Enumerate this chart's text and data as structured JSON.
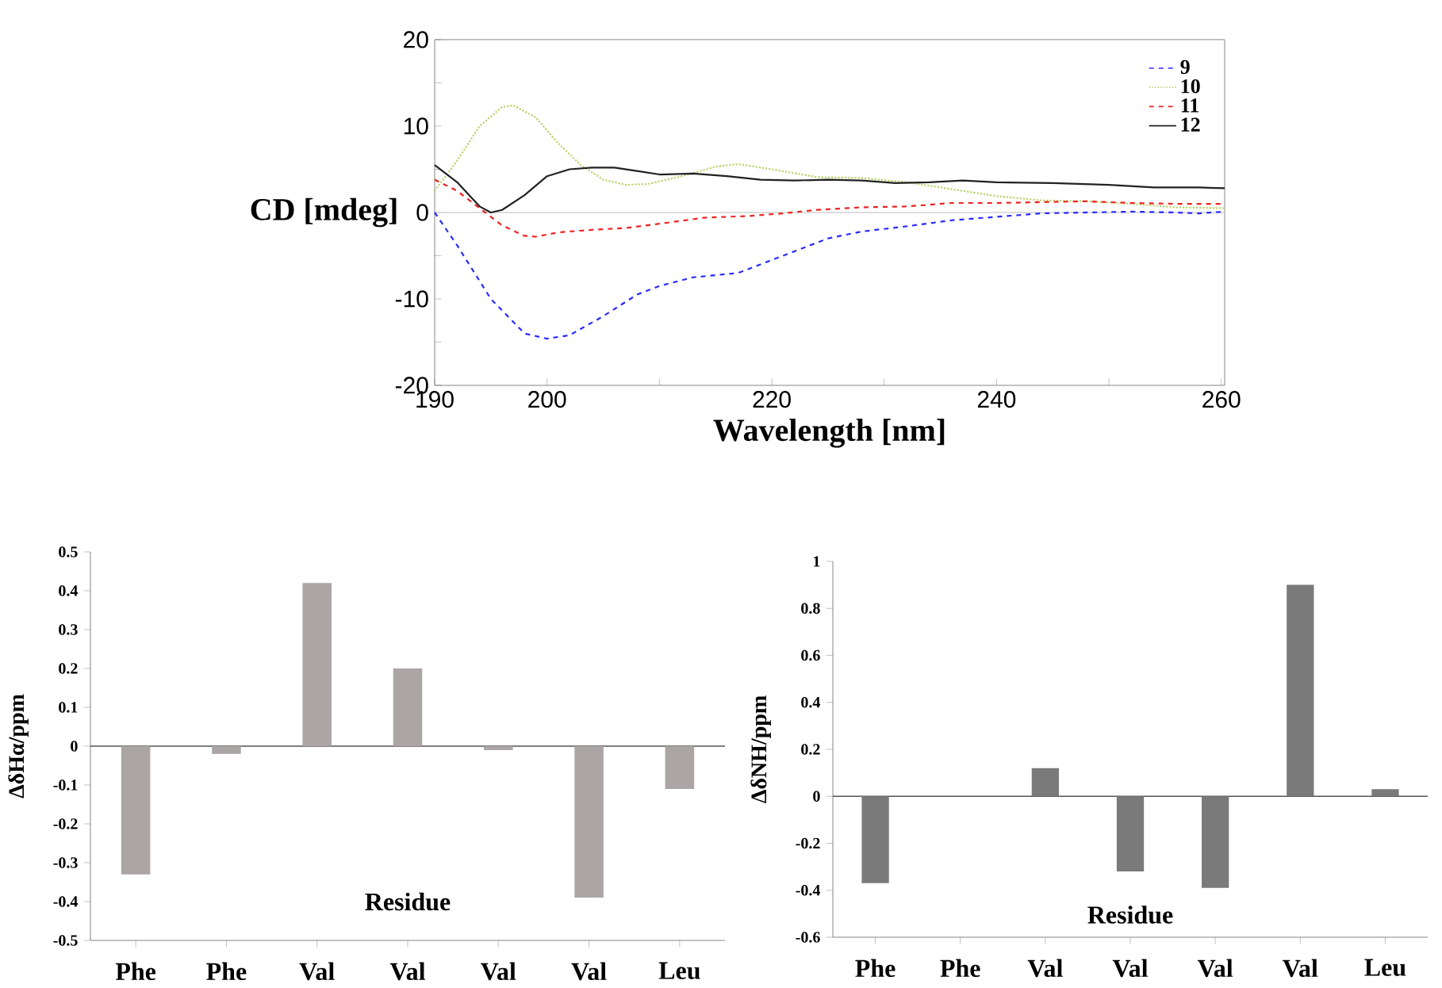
{
  "chart_data": [
    {
      "type": "line",
      "xlabel": "Wavelength [nm]",
      "ylabel": "CD [mdeg]",
      "xlim": [
        190,
        260.3
      ],
      "ylim": [
        -20,
        20
      ],
      "xticks": [
        190,
        200,
        {
          "value": 210,
          "label": null
        },
        220,
        {
          "value": 230,
          "label": null
        },
        240,
        {
          "value": 250,
          "label": null
        },
        260
      ],
      "yticks": [
        -20,
        {
          "value": -15,
          "label": null
        },
        -10,
        {
          "value": -5,
          "label": null
        },
        0,
        {
          "value": 5,
          "label": null
        },
        10,
        {
          "value": 15,
          "label": null
        },
        20
      ],
      "legend": "top right",
      "ref_lines": [
        {
          "axis": "y",
          "value": 0,
          "color": "#d0d0d0"
        }
      ],
      "series": [
        {
          "name": "9",
          "color": "#2a2aff",
          "line_style": "dashed",
          "x": [
            190,
            192,
            195,
            198,
            200,
            202,
            205,
            208,
            210,
            213,
            217,
            220,
            225,
            228,
            232,
            236,
            240,
            244,
            248,
            252,
            256,
            258,
            260.3
          ],
          "values": [
            0,
            -3.8,
            -10,
            -14,
            -14.6,
            -14.2,
            -12,
            -9.5,
            -8.5,
            -7.5,
            -7,
            -5.5,
            -3,
            -2.2,
            -1.6,
            -0.9,
            -0.5,
            -0.1,
            0,
            0.1,
            0,
            -0.1,
            0.1
          ]
        },
        {
          "name": "10",
          "color": "#b5d56a",
          "line_style": "dotted",
          "x": [
            190,
            192,
            194,
            196,
            197,
            199,
            201,
            203,
            205,
            207,
            209,
            212,
            215,
            217,
            220,
            224,
            228,
            232,
            236,
            240,
            244,
            248,
            252,
            256,
            260.3
          ],
          "values": [
            2.5,
            6,
            10,
            12.2,
            12.4,
            11,
            8,
            5.5,
            3.8,
            3.2,
            3.3,
            4.2,
            5.3,
            5.6,
            5,
            4.1,
            4,
            3.5,
            2.7,
            1.9,
            1.4,
            1.3,
            1,
            0.6,
            0.5
          ]
        },
        {
          "name": "11",
          "color": "#ee2222",
          "line_style": "dashed",
          "x": [
            190,
            192,
            194,
            196,
            198,
            199,
            201,
            204,
            207,
            210,
            214,
            218,
            221,
            224,
            228,
            232,
            236,
            240,
            244,
            248,
            252,
            256,
            260.3
          ],
          "values": [
            3.8,
            2.5,
            0.5,
            -1.5,
            -2.7,
            -2.8,
            -2.3,
            -2,
            -1.8,
            -1.3,
            -0.6,
            -0.4,
            -0.1,
            0.3,
            0.6,
            0.7,
            1.1,
            1.1,
            1.2,
            1.3,
            1.1,
            1,
            1
          ]
        },
        {
          "name": "12",
          "color": "#222222",
          "line_style": "solid",
          "x": [
            190,
            192,
            194,
            195,
            196,
            198,
            200,
            202,
            204,
            206,
            208,
            210,
            213,
            216,
            219,
            222,
            225,
            228,
            231,
            234,
            237,
            240,
            245,
            250,
            254,
            258,
            260.3
          ],
          "values": [
            5.5,
            3.5,
            0.7,
            0,
            0.3,
            2,
            4.2,
            5,
            5.2,
            5.2,
            4.8,
            4.4,
            4.5,
            4.2,
            3.8,
            3.7,
            3.8,
            3.7,
            3.4,
            3.5,
            3.7,
            3.5,
            3.4,
            3.2,
            2.9,
            2.9,
            2.8
          ]
        }
      ]
    },
    {
      "type": "bar",
      "xlabel": "Residue",
      "ylabel": "ΔδHα/ppm",
      "categories": [
        "Phe",
        "Phe",
        "Val",
        "Val",
        "Val",
        "Val",
        "Leu"
      ],
      "values": [
        -0.33,
        -0.02,
        0.42,
        0.2,
        -0.01,
        -0.39,
        -0.11
      ],
      "color": "#aba5a5",
      "ylim": [
        -0.5,
        0.5
      ],
      "yticks": [
        -0.5,
        -0.4,
        -0.3,
        -0.2,
        -0.1,
        0,
        0.1,
        0.2,
        0.3,
        0.4,
        0.5
      ],
      "ref_lines": [
        {
          "axis": "y",
          "value": 0,
          "color": "#555555"
        }
      ]
    },
    {
      "type": "bar",
      "xlabel": "Residue",
      "ylabel": "ΔδNH/ppm",
      "categories": [
        "Phe",
        "Phe",
        "Val",
        "Val",
        "Val",
        "Val",
        "Leu"
      ],
      "values": [
        -0.37,
        0,
        0.12,
        -0.32,
        -0.39,
        0.9,
        0.03
      ],
      "color": "#7a7a7a",
      "ylim": [
        -0.6,
        1
      ],
      "yticks": [
        -0.6,
        -0.4,
        -0.2,
        0,
        0.2,
        0.4,
        0.6,
        0.8,
        1
      ],
      "ref_lines": [
        {
          "axis": "y",
          "value": 0,
          "color": "#555555"
        }
      ]
    }
  ]
}
